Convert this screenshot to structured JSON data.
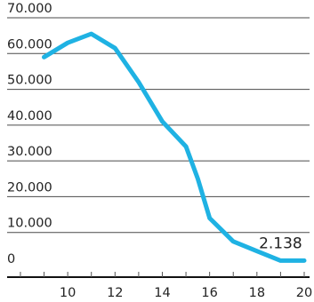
{
  "chart_data": {
    "type": "line",
    "title": "",
    "xlabel": "",
    "ylabel": "",
    "y_ticks": [
      "70.000",
      "60.000",
      "50.000",
      "40.000",
      "30.000",
      "20.000",
      "10.000",
      "0"
    ],
    "x_ticks": [
      "10",
      "12",
      "14",
      "16",
      "18",
      "20"
    ],
    "ylim": [
      0,
      70000
    ],
    "xlim": [
      7.4,
      20
    ],
    "grid": true,
    "series": [
      {
        "values": [
          {
            "x": 9,
            "y": 59000
          },
          {
            "x": 10,
            "y": 63000
          },
          {
            "x": 11,
            "y": 65500
          },
          {
            "x": 12,
            "y": 61500
          },
          {
            "x": 13,
            "y": 52000
          },
          {
            "x": 14,
            "y": 41000
          },
          {
            "x": 15,
            "y": 34000
          },
          {
            "x": 15.5,
            "y": 25000
          },
          {
            "x": 16,
            "y": 14000
          },
          {
            "x": 17,
            "y": 7500
          },
          {
            "x": 18,
            "y": 4800
          },
          {
            "x": 19,
            "y": 2138
          },
          {
            "x": 20,
            "y": 2138
          }
        ]
      }
    ],
    "annotations": [
      {
        "text": "2.138",
        "x": 19,
        "y": 2138
      }
    ],
    "colors": {
      "line": "#1fb2e3",
      "grid": "#4a4a4a",
      "axis": "#111111"
    }
  }
}
